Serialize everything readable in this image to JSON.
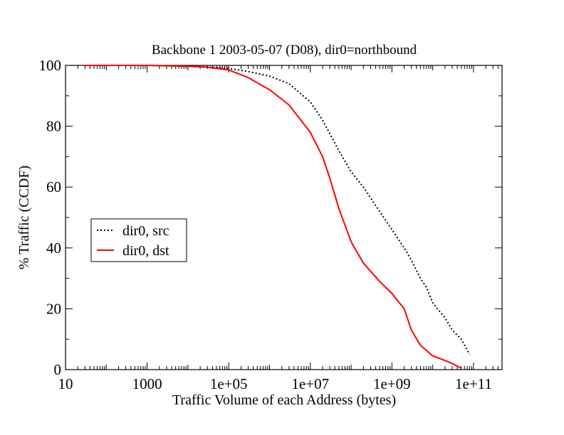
{
  "chart_data": {
    "type": "line",
    "title": "Backbone 1 2003-05-07 (D08), dir0=northbound",
    "xlabel": "Traffic Volume of each Address (bytes)",
    "ylabel": "% Traffic (CCDF)",
    "xscale": "log",
    "xlim": [
      10,
      500000000000.0
    ],
    "ylim": [
      0,
      100
    ],
    "x_ticks": [
      10,
      1000,
      100000,
      10000000,
      1000000000,
      100000000000
    ],
    "x_tick_labels": [
      "10",
      "1000",
      "1e+05",
      "1e+07",
      "1e+09",
      "1e+11"
    ],
    "y_ticks": [
      0,
      20,
      40,
      60,
      80,
      100
    ],
    "y_tick_labels": [
      "0",
      "20",
      "40",
      "60",
      "80",
      "100"
    ],
    "grid": false,
    "legend_position": "left-middle",
    "series": [
      {
        "name": "dir0, src",
        "color": "#000000",
        "style": "dotted",
        "x": [
          30,
          100,
          1000,
          10000,
          30000,
          100000,
          300000,
          1000000,
          3000000,
          10000000,
          20000000,
          50000000,
          100000000,
          200000000,
          500000000,
          1000000000,
          2000000000,
          3000000000,
          5000000000,
          7000000000,
          10000000000,
          13000000000,
          20000000000,
          30000000000,
          50000000000,
          80000000000
        ],
        "y": [
          100,
          100,
          100,
          99.8,
          99.5,
          99,
          98,
          96.5,
          94,
          88,
          82,
          72,
          65,
          60,
          52,
          46,
          40,
          36,
          30,
          27,
          22,
          20,
          17,
          13,
          10,
          5
        ]
      },
      {
        "name": "dir0, dst",
        "color": "#ff0000",
        "style": "solid",
        "x": [
          30,
          100,
          1000,
          10000,
          30000,
          100000,
          300000,
          1000000,
          3000000,
          10000000,
          20000000,
          30000000,
          50000000,
          100000000,
          200000000,
          500000000,
          1000000000,
          2000000000,
          3000000000,
          5000000000,
          10000000000,
          20000000000,
          30000000000,
          50000000000
        ],
        "y": [
          100,
          100,
          100,
          99.7,
          99.4,
          98.5,
          96,
          92,
          87,
          78,
          70,
          63,
          53,
          42,
          35,
          29,
          25,
          20,
          13,
          8,
          4.5,
          3,
          2,
          0.5
        ]
      }
    ]
  }
}
